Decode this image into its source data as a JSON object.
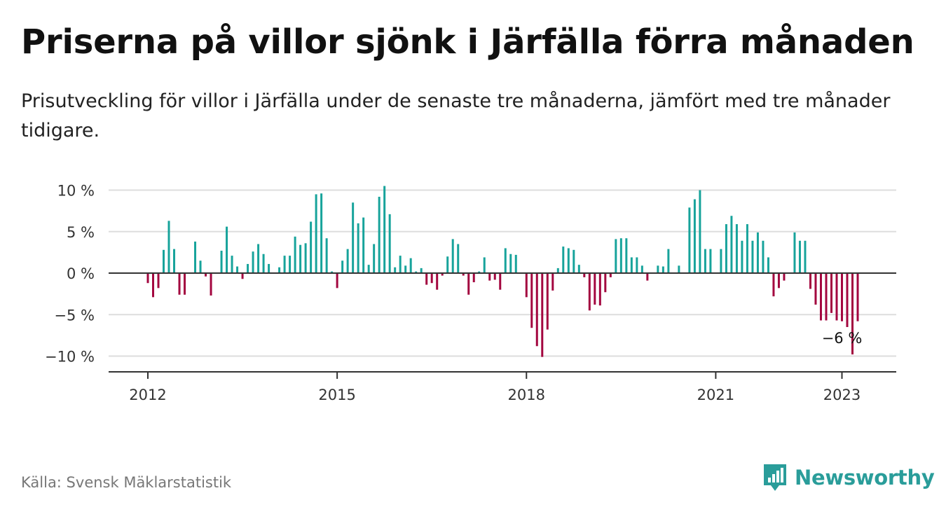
{
  "title": "Priserna på villor sjönk i Järfälla förra månaden",
  "subtitle": "Prisutveckling för villor i Järfälla under de senaste tre månaderna, jämfört med tre månader tidigare.",
  "source": "Källa: Svensk Mäklarstatistik",
  "brand": {
    "name": "Newsworthy",
    "icon": "newsworthy-logo-icon",
    "color": "#2a9d9a"
  },
  "colors": {
    "positive": "#17a39b",
    "negative": "#a3063f",
    "grid": "#dddddd",
    "axis": "#333333"
  },
  "chart_data": {
    "type": "bar",
    "start": "2012-01",
    "y_unit": "%",
    "ylim": [
      -12,
      10.5
    ],
    "yticks": [
      {
        "value": 10,
        "label": "10 %"
      },
      {
        "value": 5,
        "label": "5 %"
      },
      {
        "value": 0,
        "label": "0 %"
      },
      {
        "value": -5,
        "label": "−5 %"
      },
      {
        "value": -10,
        "label": "−10 %"
      }
    ],
    "xticks": [
      {
        "index": 0,
        "label": "2012"
      },
      {
        "index": 36,
        "label": "2015"
      },
      {
        "index": 72,
        "label": "2018"
      },
      {
        "index": 108,
        "label": "2021"
      },
      {
        "index": 132,
        "label": "2023"
      }
    ],
    "values": [
      -1.2,
      -2.9,
      -1.8,
      2.8,
      6.3,
      2.9,
      -2.6,
      -2.6,
      0,
      3.8,
      1.5,
      -0.4,
      -2.7,
      0,
      2.7,
      5.6,
      2.1,
      0.8,
      -0.7,
      1.1,
      2.6,
      3.5,
      2.3,
      1.1,
      0,
      0.7,
      2.1,
      2.1,
      4.4,
      3.4,
      3.6,
      6.2,
      9.5,
      9.6,
      4.2,
      0.2,
      -1.8,
      1.5,
      2.9,
      8.5,
      6.0,
      6.7,
      1.0,
      3.5,
      9.2,
      10.5,
      7.1,
      0.7,
      2.1,
      0.9,
      1.8,
      0.2,
      0.6,
      -1.4,
      -1.2,
      -2.0,
      -0.3,
      2.0,
      4.1,
      3.5,
      -0.3,
      -2.6,
      -1.1,
      0.2,
      1.9,
      -0.9,
      -0.8,
      -2.0,
      3.0,
      2.3,
      2.2,
      0,
      -2.9,
      -6.6,
      -8.8,
      -10.1,
      -6.8,
      -2.1,
      0.6,
      3.2,
      3.0,
      2.8,
      1.0,
      -0.5,
      -4.5,
      -3.8,
      -3.9,
      -2.3,
      -0.5,
      4.1,
      4.2,
      4.2,
      1.9,
      1.9,
      0.9,
      -0.9,
      0,
      0.9,
      0.8,
      2.9,
      0,
      0.9,
      0,
      7.9,
      8.9,
      10.0,
      2.9,
      2.9,
      0,
      2.9,
      5.9,
      6.9,
      5.9,
      3.9,
      5.9,
      3.9,
      4.9,
      3.9,
      1.9,
      -2.8,
      -1.8,
      -0.9,
      0,
      4.9,
      3.9,
      3.9,
      -1.9,
      -3.8,
      -5.7,
      -5.7,
      -4.8,
      -5.7,
      -5.8,
      -6.5,
      -9.8,
      -5.8
    ],
    "annotation": {
      "index": 132,
      "label": "−6 %"
    }
  }
}
